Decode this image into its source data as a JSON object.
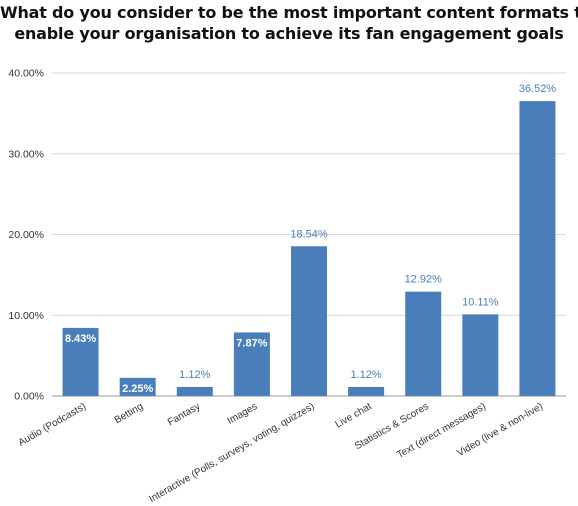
{
  "chart_data": {
    "type": "bar",
    "title_lines": [
      "What do you consider to be the most important content formats to",
      "enable your organisation to achieve its fan engagement goals"
    ],
    "categories": [
      "Audio (Podcasts)",
      "Betting",
      "Fantasy",
      "Images",
      "Interactive (Polls, surveys, voting, quizzes)",
      "Live chat",
      "Statistics & Scores",
      "Text (direct messages)",
      "Video (live & non-live)"
    ],
    "values": [
      8.43,
      2.25,
      1.12,
      7.87,
      18.54,
      1.12,
      12.92,
      10.11,
      36.52
    ],
    "data_labels": [
      "8.43%",
      "2.25%",
      "1.12%",
      "7.87%",
      "18.54%",
      "1.12%",
      "12.92%",
      "10.11%",
      "36.52%"
    ],
    "ylim": [
      0,
      40
    ],
    "yticks": [
      0,
      10,
      20,
      30,
      40
    ],
    "ytick_labels": [
      "0.00%",
      "10.00%",
      "20.00%",
      "30.00%",
      "40.00%"
    ],
    "grid": true,
    "bar_color": "#4a7ebb",
    "label_inside_color": "#ffffff",
    "label_outside_color": "#4a7ebb"
  }
}
